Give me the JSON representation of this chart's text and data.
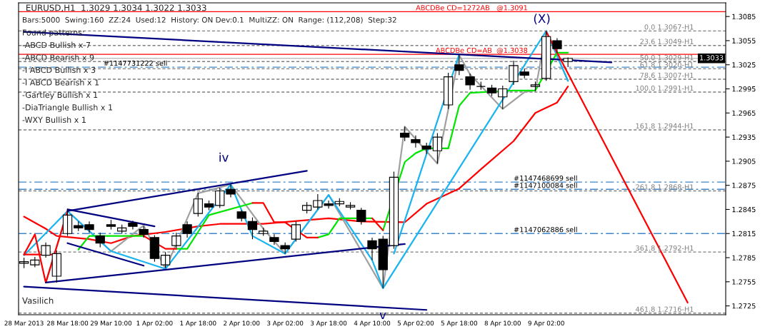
{
  "chart_data": {
    "type": "candlestick",
    "title": "EURUSD,H1  1.3029 1.3034 1.3022 1.3033",
    "subtitle": "Bars:5000  Swing:160  ZZ:24  Used:12  History: ON Dev:0.1  MultiZZ: ON  Range: (112,208)  Step:32",
    "categories": [
      "28 Mar 2013",
      null,
      null,
      null,
      "28 Mar 18:00",
      null,
      null,
      null,
      "29 Mar 10:00",
      null,
      null,
      null,
      "1 Apr 02:00",
      null,
      null,
      null,
      "1 Apr 18:00",
      null,
      null,
      null,
      "2 Apr 10:00",
      null,
      null,
      null,
      "3 Apr 02:00",
      null,
      null,
      null,
      "3 Apr 18:00",
      null,
      null,
      null,
      "4 Apr 10:00",
      null,
      null,
      null,
      "5 Apr 02:00",
      null,
      null,
      null,
      "5 Apr 18:00",
      null,
      null,
      null,
      "8 Apr 10:00",
      null,
      null,
      null,
      "9 Apr 02:00",
      null,
      null,
      null,
      null,
      null,
      null,
      null,
      null,
      null,
      null,
      null,
      null,
      null,
      null,
      null,
      null
    ],
    "color": "#000000",
    "ohlc": [
      [
        1.2778,
        1.2785,
        1.2772,
        1.278
      ],
      [
        1.2776,
        1.2786,
        1.2773,
        1.2782
      ],
      [
        1.2788,
        1.2804,
        1.2785,
        1.28
      ],
      [
        1.2762,
        1.2794,
        1.2754,
        1.279
      ],
      [
        1.2815,
        1.2845,
        1.2812,
        1.2838
      ],
      [
        1.2825,
        1.283,
        1.2818,
        1.2822
      ],
      [
        1.2826,
        1.283,
        1.2816,
        1.282
      ],
      [
        1.2812,
        1.2816,
        1.2798,
        1.2803
      ],
      [
        1.2826,
        1.2832,
        1.282,
        1.2824
      ],
      [
        1.2818,
        1.2826,
        1.2815,
        1.2822
      ],
      [
        1.2828,
        1.2831,
        1.282,
        1.2824
      ],
      [
        1.282,
        1.2824,
        1.281,
        1.2814
      ],
      [
        1.281,
        1.2813,
        1.278,
        1.2784
      ],
      [
        1.2776,
        1.2792,
        1.2772,
        1.2788
      ],
      [
        1.28,
        1.2816,
        1.2797,
        1.2812
      ],
      [
        1.2826,
        1.283,
        1.281,
        1.2815
      ],
      [
        1.284,
        1.2866,
        1.2836,
        1.2858
      ],
      [
        1.2852,
        1.2856,
        1.2844,
        1.2848
      ],
      [
        1.285,
        1.2872,
        1.2847,
        1.2868
      ],
      [
        1.287,
        1.2876,
        1.286,
        1.2864
      ],
      [
        1.2842,
        1.2844,
        1.283,
        1.2834
      ],
      [
        1.283,
        1.2835,
        1.2808,
        1.282
      ],
      [
        1.2815,
        1.2822,
        1.2812,
        1.2818
      ],
      [
        1.281,
        1.2814,
        1.2801,
        1.2805
      ],
      [
        1.28,
        1.2804,
        1.279,
        1.2796
      ],
      [
        1.2808,
        1.283,
        1.2805,
        1.2826
      ],
      [
        1.2844,
        1.2854,
        1.284,
        1.285
      ],
      [
        1.2848,
        1.2864,
        1.2845,
        1.2856
      ],
      [
        1.2852,
        1.2856,
        1.2846,
        1.285
      ],
      [
        1.2852,
        1.2859,
        1.2849,
        1.2855
      ],
      [
        1.2848,
        1.2854,
        1.2845,
        1.285
      ],
      [
        1.2844,
        1.2847,
        1.2826,
        1.283
      ],
      [
        1.2806,
        1.281,
        1.2782,
        1.2796
      ],
      [
        1.2808,
        1.2812,
        1.2747,
        1.277
      ],
      [
        1.28,
        1.2892,
        1.2796,
        1.2885
      ],
      [
        1.294,
        1.2948,
        1.293,
        1.2935
      ],
      [
        1.2932,
        1.2937,
        1.2922,
        1.2928
      ],
      [
        1.2924,
        1.2928,
        1.2914,
        1.292
      ],
      [
        1.2918,
        1.294,
        1.2902,
        1.2935
      ],
      [
        1.2975,
        1.3015,
        1.297,
        1.301
      ],
      [
        1.3025,
        1.3037,
        1.3012,
        1.3018
      ],
      [
        1.301,
        1.3014,
        1.2994,
        1.3
      ],
      [
        1.2998,
        1.3004,
        1.2994,
        1.2998
      ],
      [
        1.2996,
        1.3,
        1.2986,
        1.299
      ],
      [
        1.2985,
        1.2999,
        1.297,
        1.2995
      ],
      [
        1.3004,
        1.303,
        1.3,
        1.3024
      ],
      [
        1.3016,
        1.302,
        1.3008,
        1.3012
      ],
      [
        1.2998,
        1.3004,
        1.2992,
        1.3
      ],
      [
        1.3008,
        1.3067,
        1.3005,
        1.306
      ],
      [
        1.3055,
        1.3058,
        1.304,
        1.3045
      ],
      [
        1.3029,
        1.3034,
        1.3022,
        1.3033
      ],
      null,
      null,
      null,
      null,
      null,
      null,
      null,
      null,
      null,
      null,
      null,
      null,
      null,
      null
    ],
    "ylim": [
      1.2714,
      1.3102
    ],
    "yticks": [
      {
        "value": 1.2725,
        "label": "1.2725"
      },
      {
        "value": 1.2755,
        "label": "1.2755"
      },
      {
        "value": 1.2785,
        "label": "1.2785"
      },
      {
        "value": 1.2815,
        "label": "1.2815"
      },
      {
        "value": 1.2845,
        "label": "1.2845"
      },
      {
        "value": 1.2875,
        "label": "1.2875"
      },
      {
        "value": 1.2905,
        "label": "1.2905"
      },
      {
        "value": 1.2935,
        "label": "1.2935"
      },
      {
        "value": 1.2965,
        "label": "1.2965"
      },
      {
        "value": 1.2995,
        "label": "1.2995"
      },
      {
        "value": 1.3025,
        "label": "1.3025"
      },
      {
        "value": 1.3055,
        "label": "1.3055"
      },
      {
        "value": 1.3085,
        "label": "1.3085"
      }
    ],
    "series": [
      {
        "type": "line",
        "color": "#ff0000",
        "values": [
          1.2836,
          null,
          1.2821,
          1.2812,
          null,
          null,
          1.2808,
          null,
          1.2803,
          null,
          1.2812,
          null,
          null,
          1.2817,
          null,
          null,
          1.2824,
          null,
          1.2827,
          null,
          null,
          null,
          1.2827,
          null,
          null,
          null,
          null,
          null,
          1.2834,
          null,
          null,
          1.283,
          null,
          null,
          null,
          1.2829,
          null,
          1.2852,
          null,
          null,
          1.2871,
          null,
          1.2895,
          null,
          null,
          1.293,
          null,
          1.2965,
          null,
          1.2978,
          1.2998,
          null,
          null,
          null,
          null,
          null,
          null,
          null,
          null,
          null,
          null,
          null,
          null,
          null,
          null
        ]
      },
      {
        "type": "line",
        "color": "#a0a0a0",
        "values": [
          null,
          null,
          1.2754,
          null,
          1.2843,
          null,
          null,
          null,
          1.2793,
          null,
          null,
          1.2825,
          null,
          1.2771,
          null,
          null,
          1.2865,
          null,
          null,
          1.2876,
          null,
          null,
          1.2821,
          null,
          1.279,
          null,
          null,
          null,
          1.2863,
          null,
          null,
          null,
          null,
          1.2747,
          null,
          1.2948,
          null,
          null,
          1.2902,
          null,
          1.3037,
          1.3013,
          null,
          null,
          1.297,
          null,
          1.2991,
          1.2993,
          1.3067,
          null,
          1.3005,
          null,
          null,
          null,
          null,
          null,
          null,
          null,
          null,
          null,
          null,
          null,
          null,
          null,
          null
        ]
      },
      {
        "type": "line",
        "color": "#19b4f0",
        "values": [
          1.2788,
          null,
          null,
          null,
          1.2843,
          null,
          null,
          null,
          1.2793,
          null,
          null,
          null,
          null,
          1.2771,
          null,
          null,
          null,
          null,
          null,
          1.2876,
          null,
          1.2812,
          null,
          null,
          1.279,
          null,
          null,
          null,
          1.2863,
          null,
          null,
          null,
          1.2782,
          1.2747,
          null,
          null,
          null,
          null,
          null,
          null,
          null,
          null,
          null,
          null,
          null,
          null,
          null,
          null,
          1.3067,
          null,
          1.3005,
          null,
          null,
          null,
          null,
          null,
          null,
          null,
          null,
          null,
          null,
          null,
          null,
          null,
          null
        ]
      },
      {
        "type": "line",
        "color": "#19b4f0",
        "values": [
          null,
          null,
          null,
          null,
          null,
          null,
          null,
          null,
          null,
          null,
          null,
          null,
          null,
          null,
          null,
          null,
          null,
          null,
          null,
          null,
          null,
          null,
          null,
          null,
          null,
          null,
          null,
          null,
          null,
          null,
          null,
          null,
          null,
          null,
          1.279,
          null,
          null,
          null,
          null,
          null,
          1.3038,
          null,
          null,
          null,
          null,
          null,
          null,
          null,
          null,
          null,
          null,
          null,
          null,
          null,
          null,
          null,
          null,
          null,
          null,
          null,
          null,
          null,
          null,
          null,
          null
        ]
      },
      {
        "type": "line",
        "color": "#00e600",
        "values": [
          null,
          null,
          null,
          null,
          null,
          1.2795,
          1.2812,
          null,
          null,
          null,
          null,
          1.2812,
          null,
          null,
          null,
          null,
          null,
          null,
          null,
          null,
          null,
          null,
          null,
          null,
          null,
          null,
          null,
          null,
          null,
          null,
          null,
          null,
          null,
          null,
          null,
          null,
          null,
          null,
          null,
          null,
          null,
          null,
          null,
          null,
          null,
          null,
          null,
          null,
          null,
          null,
          null,
          null,
          null,
          null,
          null,
          null,
          null,
          null,
          null,
          null,
          null,
          null,
          null,
          null,
          null
        ]
      },
      {
        "type": "line",
        "color": "#00e600",
        "values": [
          null,
          null,
          null,
          null,
          null,
          null,
          null,
          null,
          null,
          null,
          null,
          null,
          null,
          null,
          1.2796,
          1.2796,
          1.2817,
          1.2838,
          null,
          null,
          null,
          1.2853,
          null,
          null,
          null,
          null,
          null,
          null,
          null,
          null,
          null,
          null,
          null,
          null,
          null,
          null,
          null,
          null,
          null,
          null,
          null,
          null,
          null,
          null,
          null,
          null,
          null,
          null,
          null,
          null,
          null,
          null,
          null,
          null,
          null,
          null,
          null,
          null,
          null,
          null,
          null,
          null,
          null,
          null,
          null
        ]
      },
      {
        "type": "line",
        "color": "#00e600",
        "values": [
          null,
          null,
          null,
          null,
          null,
          null,
          null,
          null,
          null,
          null,
          null,
          null,
          null,
          null,
          null,
          null,
          null,
          null,
          null,
          null,
          null,
          null,
          null,
          null,
          null,
          null,
          null,
          1.281,
          1.2814,
          1.2834,
          null,
          null,
          1.2834,
          null,
          null,
          null,
          null,
          null,
          null,
          null,
          null,
          null,
          null,
          null,
          null,
          null,
          null,
          null,
          null,
          null,
          null,
          null,
          null,
          null,
          null,
          null,
          null,
          null,
          null,
          null,
          null,
          null,
          null,
          null,
          null
        ]
      },
      {
        "type": "line",
        "color": "#00e600",
        "values": [
          null,
          null,
          null,
          null,
          null,
          null,
          null,
          null,
          null,
          null,
          null,
          null,
          null,
          null,
          null,
          null,
          null,
          null,
          null,
          null,
          null,
          null,
          null,
          null,
          null,
          null,
          null,
          null,
          null,
          null,
          null,
          null,
          null,
          1.2819,
          null,
          1.2904,
          1.2915,
          1.2921,
          null,
          1.2921,
          1.2974,
          1.299,
          null,
          null,
          null,
          1.2993,
          null,
          1.2993,
          null,
          1.304,
          1.304,
          null,
          null,
          null,
          null,
          null,
          null,
          null,
          null,
          null,
          null,
          null,
          null,
          null,
          null
        ]
      },
      {
        "type": "line",
        "color": "#ff0000",
        "values": [
          1.2789,
          null,
          null,
          1.2789,
          null,
          null,
          null,
          null,
          null,
          null,
          null,
          null,
          null,
          null,
          null,
          null,
          null,
          null,
          null,
          null,
          null,
          null,
          null,
          null,
          null,
          null,
          null,
          null,
          null,
          null,
          null,
          null,
          null,
          null,
          null,
          null,
          null,
          null,
          null,
          null,
          null,
          null,
          null,
          null,
          null,
          null,
          null,
          null,
          null,
          null,
          null,
          null,
          null,
          null,
          null,
          null,
          null,
          null,
          null,
          null,
          null,
          null,
          null,
          null,
          null
        ]
      },
      {
        "type": "line",
        "color": "#ff0000",
        "values": [
          1.2789,
          1.2814,
          1.2754,
          null,
          1.2843,
          null,
          null,
          null,
          null,
          null,
          null,
          null,
          null,
          null,
          null,
          null,
          null,
          null,
          null,
          null,
          null,
          null,
          null,
          null,
          null,
          null,
          null,
          null,
          null,
          null,
          null,
          null,
          null,
          null,
          null,
          null,
          null,
          null,
          null,
          null,
          null,
          null,
          null,
          null,
          null,
          null,
          null,
          null,
          null,
          null,
          null,
          null,
          null,
          null,
          null,
          null,
          null,
          null,
          null,
          null,
          null,
          null,
          null,
          null,
          null
        ]
      },
      {
        "type": "line",
        "color": "#ff0000",
        "values": [
          null,
          null,
          null,
          null,
          null,
          null,
          null,
          null,
          null,
          null,
          null,
          1.2812,
          null,
          1.2796,
          1.2796,
          null,
          null,
          null,
          null,
          null,
          null,
          null,
          null,
          null,
          null,
          null,
          null,
          null,
          null,
          null,
          null,
          null,
          null,
          null,
          null,
          null,
          null,
          null,
          null,
          null,
          null,
          null,
          null,
          null,
          null,
          null,
          null,
          null,
          null,
          null,
          null,
          null,
          null,
          null,
          null,
          null,
          null,
          null,
          null,
          null,
          null,
          null,
          null,
          null,
          null
        ]
      },
      {
        "type": "line",
        "color": "#ff0000",
        "values": [
          null,
          null,
          null,
          null,
          null,
          null,
          null,
          null,
          null,
          null,
          null,
          null,
          null,
          null,
          null,
          null,
          null,
          null,
          null,
          null,
          null,
          1.2853,
          1.2853,
          1.2829,
          1.2829,
          null,
          1.281,
          1.281,
          null,
          null,
          null,
          null,
          null,
          null,
          null,
          null,
          null,
          null,
          null,
          null,
          null,
          null,
          null,
          null,
          null,
          null,
          null,
          null,
          null,
          null,
          null,
          null,
          null,
          null,
          null,
          null,
          null,
          null,
          null,
          null,
          null,
          null,
          null,
          null,
          null
        ]
      },
      {
        "type": "line",
        "color": "#ff0000",
        "values": [
          null,
          null,
          null,
          null,
          null,
          null,
          null,
          null,
          null,
          null,
          null,
          null,
          null,
          null,
          null,
          null,
          null,
          null,
          null,
          null,
          null,
          null,
          null,
          null,
          null,
          null,
          null,
          null,
          null,
          null,
          null,
          null,
          1.2834,
          1.2819,
          null,
          null,
          null,
          null,
          null,
          null,
          null,
          null,
          null,
          null,
          null,
          null,
          null,
          null,
          null,
          null,
          null,
          null,
          null,
          null,
          null,
          null,
          null,
          null,
          null,
          null,
          null,
          null,
          null,
          null,
          null
        ]
      },
      {
        "type": "line",
        "color": "#000080",
        "values": [
          1.3066,
          null,
          null,
          null,
          null,
          null,
          null,
          null,
          null,
          null,
          null,
          null,
          null,
          null,
          null,
          null,
          null,
          null,
          null,
          null,
          null,
          null,
          null,
          null,
          null,
          null,
          null,
          null,
          null,
          null,
          null,
          null,
          null,
          null,
          null,
          null,
          null,
          null,
          null,
          null,
          null,
          null,
          null,
          null,
          null,
          null,
          null,
          null,
          null,
          null,
          null,
          null,
          null,
          null,
          1.3028,
          null,
          null,
          null,
          null,
          null,
          null,
          null,
          null,
          null,
          null
        ]
      },
      {
        "type": "line",
        "color": "#000080",
        "values": [
          null,
          null,
          null,
          null,
          1.2843,
          null,
          null,
          null,
          null,
          null,
          null,
          null,
          null,
          null,
          null,
          null,
          null,
          null,
          null,
          null,
          null,
          null,
          null,
          null,
          null,
          null,
          1.2893,
          null,
          null,
          null,
          null,
          null,
          null,
          null,
          null,
          null,
          null,
          null,
          null,
          null,
          null,
          null,
          null,
          null,
          null,
          null,
          null,
          null,
          null,
          null,
          null,
          null,
          null,
          null,
          null,
          null,
          null,
          null,
          null,
          null,
          null,
          null,
          null,
          null,
          null
        ]
      },
      {
        "type": "line",
        "color": "#000080",
        "values": [
          null,
          null,
          null,
          null,
          1.2845,
          null,
          null,
          null,
          null,
          null,
          null,
          null,
          1.2824,
          null,
          null,
          null,
          null,
          null,
          null,
          null,
          null,
          null,
          null,
          null,
          null,
          null,
          null,
          null,
          null,
          null,
          null,
          null,
          null,
          null,
          null,
          null,
          null,
          null,
          null,
          null,
          null,
          null,
          null,
          null,
          null,
          null,
          null,
          null,
          null,
          null,
          null,
          null,
          null,
          null,
          null,
          null,
          null,
          null,
          null,
          null,
          null,
          null,
          null,
          null,
          null
        ]
      },
      {
        "type": "line",
        "color": "#000080",
        "values": [
          null,
          null,
          null,
          null,
          1.2803,
          null,
          null,
          null,
          null,
          null,
          null,
          1.2775,
          null,
          null,
          null,
          null,
          null,
          null,
          null,
          null,
          null,
          null,
          null,
          null,
          null,
          null,
          null,
          null,
          null,
          null,
          null,
          null,
          null,
          null,
          null,
          null,
          null,
          null,
          null,
          null,
          null,
          null,
          null,
          null,
          null,
          null,
          null,
          null,
          null,
          null,
          null,
          null,
          null,
          null,
          null,
          null,
          null,
          null,
          null,
          null,
          null,
          null,
          null,
          null,
          null
        ]
      },
      {
        "type": "line",
        "color": "#000080",
        "values": [
          null,
          null,
          1.2754,
          null,
          null,
          null,
          null,
          null,
          null,
          null,
          null,
          null,
          null,
          null,
          null,
          null,
          null,
          null,
          null,
          null,
          null,
          null,
          null,
          null,
          null,
          null,
          null,
          null,
          null,
          null,
          null,
          null,
          null,
          null,
          null,
          1.2802,
          null,
          null,
          null,
          null,
          null,
          null,
          null,
          null,
          null,
          null,
          null,
          null,
          null,
          null,
          null,
          null,
          null,
          null,
          null,
          null,
          null,
          null,
          null,
          null,
          null,
          null,
          null,
          null,
          null
        ]
      },
      {
        "type": "line",
        "color": "#000080",
        "values": [
          1.2749,
          null,
          null,
          null,
          null,
          null,
          null,
          null,
          null,
          null,
          null,
          null,
          null,
          null,
          null,
          null,
          null,
          null,
          null,
          null,
          null,
          null,
          null,
          null,
          null,
          null,
          null,
          null,
          null,
          null,
          null,
          null,
          null,
          null,
          null,
          null,
          null,
          1.272,
          null,
          null,
          null,
          null,
          null,
          null,
          null,
          null,
          null,
          null,
          null,
          null,
          null,
          null,
          null,
          null,
          null,
          null,
          null,
          null,
          null,
          null,
          null,
          null,
          null,
          null,
          null
        ]
      },
      {
        "type": "line",
        "color": "#ff0000",
        "values": [
          null,
          null,
          null,
          null,
          null,
          null,
          null,
          null,
          null,
          null,
          null,
          null,
          null,
          null,
          null,
          null,
          null,
          null,
          null,
          null,
          null,
          null,
          null,
          null,
          null,
          null,
          null,
          null,
          null,
          null,
          null,
          null,
          null,
          null,
          null,
          null,
          null,
          null,
          null,
          null,
          null,
          null,
          null,
          null,
          null,
          null,
          null,
          null,
          1.3066,
          null,
          null,
          null,
          null,
          null,
          null,
          null,
          null,
          null,
          null,
          null,
          null,
          1.2729,
          null,
          null,
          null
        ]
      }
    ],
    "ref_lines": [
      {
        "axis": "y",
        "value": 1.3091,
        "label": "ABCDBe CD=1272AB   @1.3091",
        "color": "#ff0000",
        "line_style": "solid"
      },
      {
        "axis": "y",
        "value": 1.3038,
        "label": "ABCDBe CD=AB  @1.3038",
        "color": "#ff0000",
        "line_style": "solid"
      },
      {
        "axis": "y",
        "value": 1.3067,
        "label": "0.0 1.3067-H1",
        "color": "#808080",
        "line_style": "dotted"
      },
      {
        "axis": "y",
        "value": 1.3049,
        "label": "23.6 1.3049-H1",
        "color": "#808080",
        "line_style": "dotted"
      },
      {
        "axis": "y",
        "value": 1.3029,
        "label": "50.0 1.3029-H1",
        "color": "#808080",
        "line_style": "dotted"
      },
      {
        "axis": "y",
        "value": 1.302,
        "label": "61.8 1.3020-H1",
        "color": "#808080",
        "line_style": "dotted"
      },
      {
        "axis": "y",
        "value": 1.3007,
        "label": "78.6 1.3007-H1",
        "color": "#808080",
        "line_style": "dotted"
      },
      {
        "axis": "y",
        "value": 1.2991,
        "label": "100.0 1.2991-H1",
        "color": "#808080",
        "line_style": "dotted"
      },
      {
        "axis": "y",
        "value": 1.2944,
        "label": "161.8 1.2944-H1",
        "color": "#808080",
        "line_style": "dotted"
      },
      {
        "axis": "y",
        "value": 1.2868,
        "label": "261.8 1.2868-H1",
        "color": "#808080",
        "line_style": "dotted"
      },
      {
        "axis": "y",
        "value": 1.2792,
        "label": "361.8 1.2792-H1",
        "color": "#808080",
        "line_style": "dotted"
      },
      {
        "axis": "y",
        "value": 1.2716,
        "label": "461.8 1.2716-H1",
        "color": "#808080",
        "line_style": "dotted"
      },
      {
        "axis": "y",
        "value": 1.3022,
        "label": "#1147731222 sell",
        "color": "#3d85c6",
        "line_style": "dashed"
      },
      {
        "axis": "y",
        "value": 1.2879,
        "label": "#1147468699 sell",
        "color": "#3d85c6",
        "line_style": "dashed"
      },
      {
        "axis": "y",
        "value": 1.287,
        "label": "#1147100084 sell",
        "color": "#3d85c6",
        "line_style": "dashed"
      },
      {
        "axis": "y",
        "value": 1.2815,
        "label": "#1147062886 sell",
        "color": "#3d85c6",
        "line_style": "dashed"
      },
      {
        "axis": "y",
        "value": 1.3033,
        "label": "1.3033",
        "color": "#c0c0c0",
        "line_style": "solid"
      }
    ],
    "annotations": [
      "Found patterns:",
      "-ABCD Bullish x 7",
      "-ABCD Bearish x 9",
      "-I ABCD Bullish x 3",
      "-I ABCD Bearish x 1",
      "-Gartley Bullish x 1",
      "-DiaTriangle Bullish x 1",
      "-WXY Bullish x 1",
      "Vasilich",
      "(X)",
      "iv",
      "v"
    ]
  }
}
